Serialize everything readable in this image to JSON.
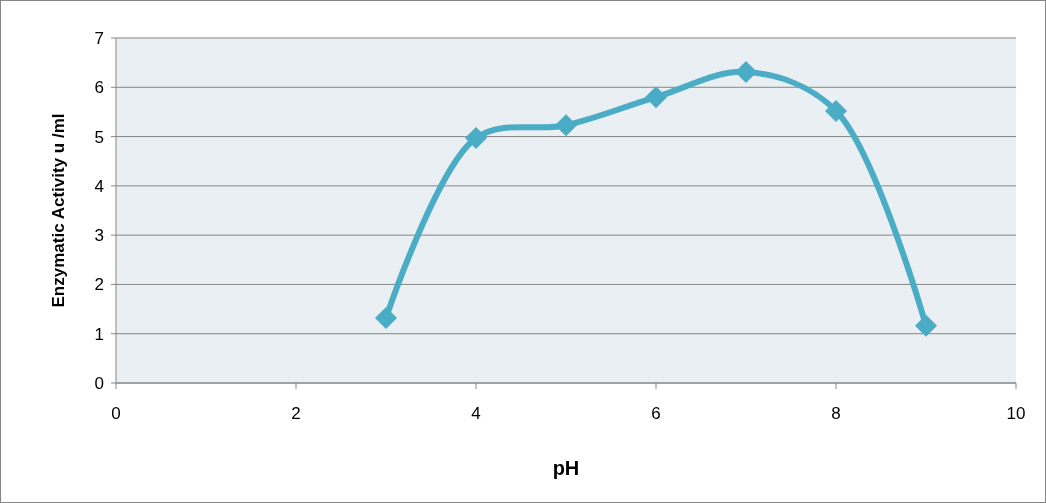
{
  "chart_data": {
    "type": "line",
    "xlabel": "pH",
    "ylabel": "Enzymatic Activity u /ml",
    "x": [
      3,
      4,
      5,
      6,
      7,
      8,
      9
    ],
    "series": [
      {
        "color": "#4bacc6",
        "values": [
          1.32,
          4.97,
          5.23,
          5.8,
          6.31,
          5.52,
          1.16
        ]
      }
    ],
    "xlim": [
      0,
      10
    ],
    "xticks": [
      0,
      2,
      4,
      6,
      8,
      10
    ],
    "ylim": [
      0,
      7
    ],
    "yticks": [
      0,
      1,
      2,
      3,
      4,
      5,
      6,
      7
    ],
    "grid": "y",
    "marker": "diamond",
    "line_style": "solid"
  }
}
